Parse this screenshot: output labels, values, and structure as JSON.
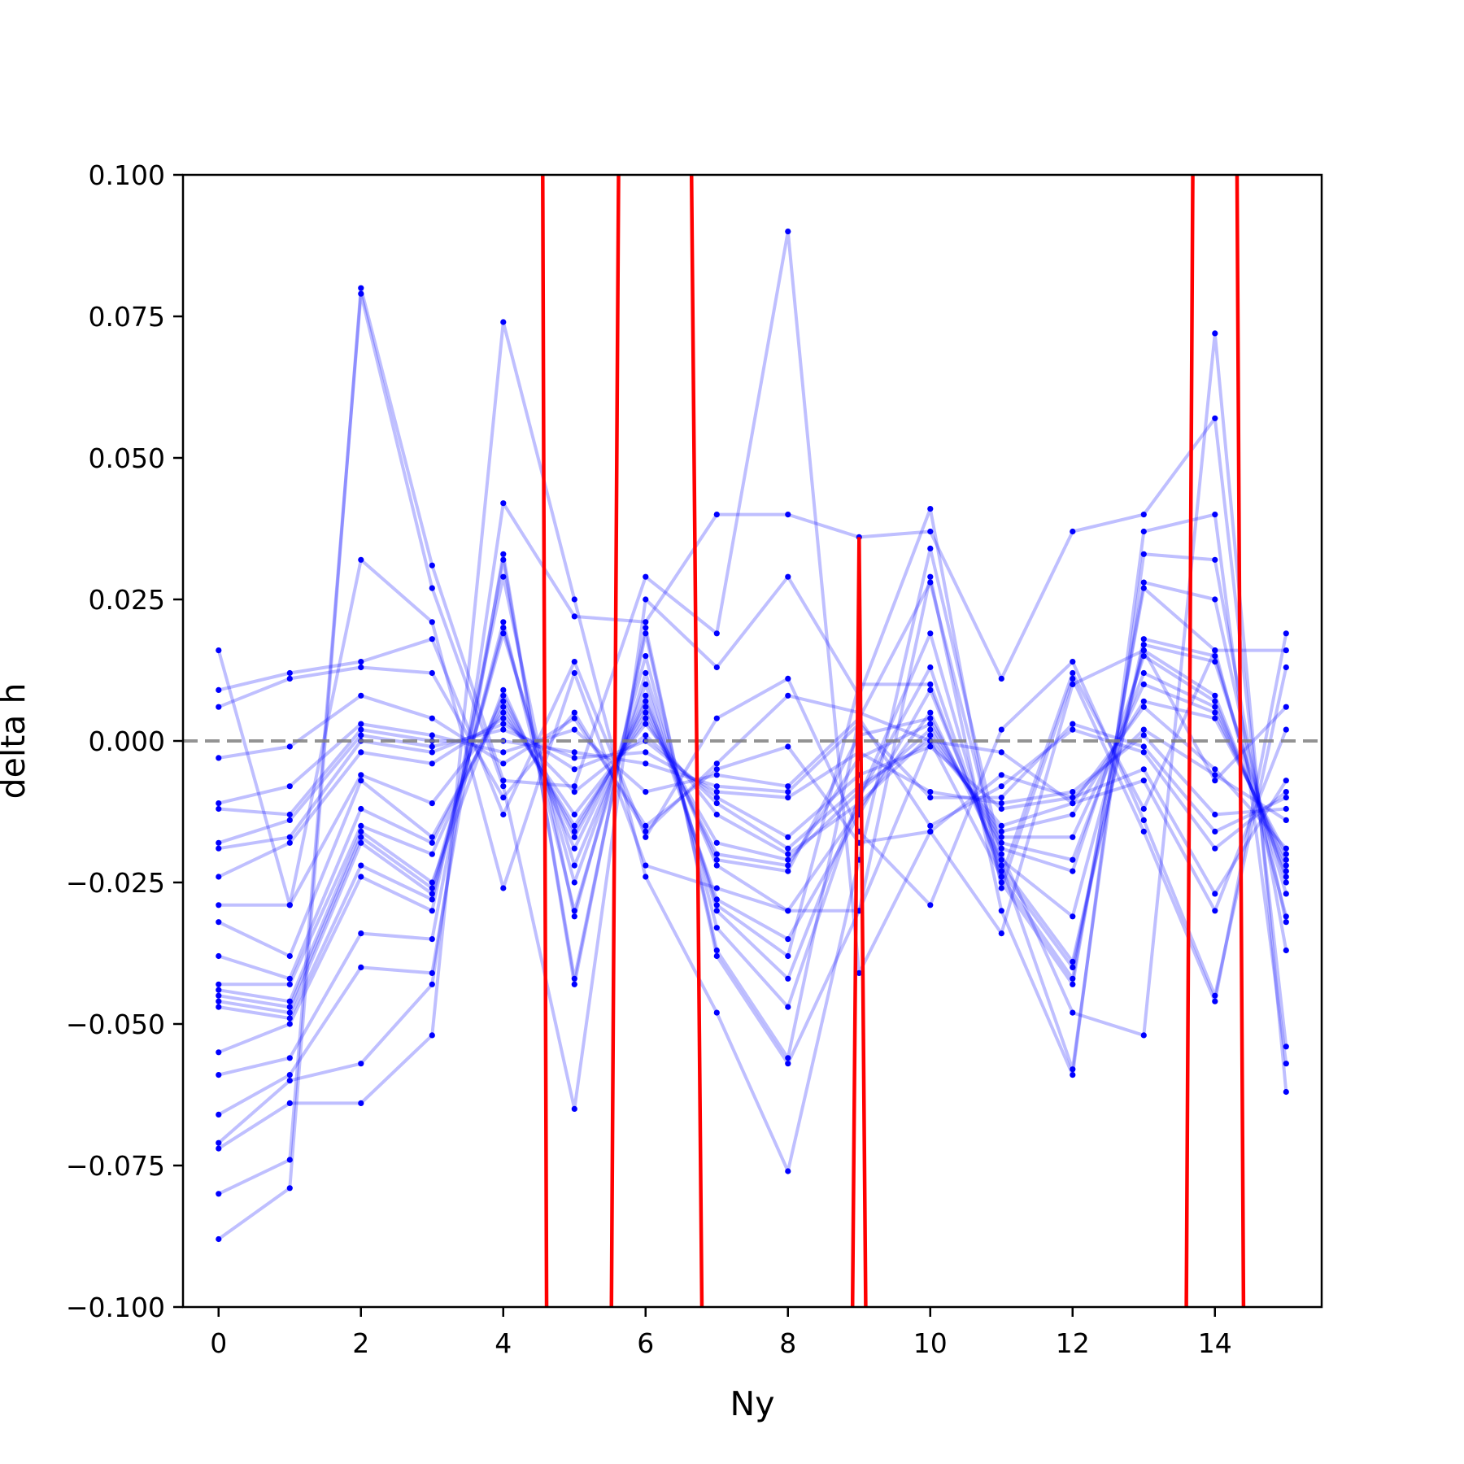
{
  "chart_data": {
    "type": "line",
    "title": "",
    "xlabel": "Ny",
    "ylabel": "delta h",
    "xlim": [
      -0.5,
      15.5
    ],
    "ylim": [
      -0.1,
      0.1
    ],
    "grid": false,
    "legend": "none",
    "x_ticks": [
      "0",
      "2",
      "4",
      "6",
      "8",
      "10",
      "12",
      "14"
    ],
    "y_ticks": [
      "0.100",
      "0.075",
      "0.050",
      "0.025",
      "0.000",
      "−0.025",
      "−0.050",
      "−0.075",
      "−0.100"
    ],
    "reference_line": {
      "y": 0.0,
      "style": "dashed",
      "color": "#808080"
    },
    "colors": {
      "series": "#0000ff",
      "highlight": "#ff0000",
      "reference": "#808080",
      "axes": "#000000"
    },
    "x": [
      0,
      1,
      2,
      3,
      4,
      5,
      6,
      7,
      8,
      9,
      10,
      11,
      12,
      13,
      14,
      15
    ],
    "series": [
      {
        "values": [
          -0.088,
          -0.079,
          0.08,
          0.031,
          -0.007,
          -0.008,
          0.029,
          0.019,
          0.09,
          -0.041,
          -0.016,
          -0.034,
          0.01,
          0.016,
          -0.007,
          0.006
        ]
      },
      {
        "values": [
          -0.08,
          -0.074,
          0.079,
          0.027,
          -0.008,
          -0.065,
          0.025,
          0.013,
          0.029,
          0.008,
          0.041,
          -0.026,
          0.011,
          -0.016,
          -0.046,
          0.019
        ]
      },
      {
        "values": [
          -0.072,
          -0.064,
          -0.064,
          -0.052,
          0.074,
          0.025,
          -0.024,
          -0.048,
          -0.076,
          -0.021,
          0.034,
          -0.02,
          -0.048,
          -0.052,
          0.072,
          -0.062
        ]
      },
      {
        "values": [
          -0.071,
          -0.06,
          -0.057,
          -0.043,
          0.042,
          0.022,
          0.021,
          0.04,
          0.04,
          0.036,
          0.037,
          0.011,
          0.037,
          0.04,
          0.057,
          -0.054
        ]
      },
      {
        "values": [
          -0.066,
          -0.059,
          -0.04,
          -0.041,
          0.033,
          -0.043,
          0.02,
          -0.038,
          -0.057,
          -0.03,
          0.029,
          -0.03,
          -0.059,
          0.037,
          0.04,
          -0.057
        ]
      },
      {
        "values": [
          -0.059,
          -0.056,
          -0.034,
          -0.035,
          0.032,
          -0.042,
          0.019,
          -0.037,
          -0.056,
          0.004,
          0.028,
          -0.022,
          -0.058,
          0.033,
          0.032,
          -0.037
        ]
      },
      {
        "values": [
          -0.055,
          -0.05,
          -0.024,
          -0.03,
          0.029,
          -0.031,
          0.015,
          -0.033,
          -0.047,
          -0.01,
          0.019,
          -0.025,
          -0.043,
          0.028,
          0.025,
          -0.032
        ]
      },
      {
        "values": [
          -0.047,
          -0.049,
          -0.022,
          -0.028,
          0.021,
          -0.03,
          0.012,
          -0.03,
          -0.042,
          -0.01,
          0.013,
          -0.024,
          -0.042,
          0.027,
          0.016,
          -0.031
        ]
      },
      {
        "values": [
          -0.046,
          -0.048,
          -0.018,
          -0.027,
          0.02,
          -0.025,
          0.01,
          -0.029,
          -0.038,
          0.01,
          0.01,
          -0.023,
          -0.04,
          0.018,
          0.015,
          -0.027
        ]
      },
      {
        "values": [
          -0.045,
          -0.047,
          -0.017,
          -0.026,
          0.019,
          -0.022,
          0.008,
          -0.028,
          -0.035,
          -0.013,
          0.009,
          -0.022,
          -0.039,
          0.017,
          0.014,
          -0.025
        ]
      },
      {
        "values": [
          -0.044,
          -0.046,
          -0.016,
          -0.025,
          0.009,
          -0.019,
          0.007,
          -0.022,
          -0.03,
          -0.012,
          0.005,
          -0.021,
          -0.031,
          0.016,
          0.008,
          -0.024
        ]
      },
      {
        "values": [
          -0.043,
          -0.043,
          -0.015,
          -0.02,
          0.008,
          -0.017,
          0.006,
          -0.021,
          -0.023,
          0.001,
          0.004,
          -0.019,
          -0.023,
          0.015,
          0.007,
          -0.023
        ]
      },
      {
        "values": [
          -0.038,
          -0.042,
          -0.012,
          -0.018,
          0.007,
          -0.016,
          0.005,
          -0.02,
          -0.022,
          -0.003,
          0.003,
          -0.018,
          -0.021,
          0.012,
          0.006,
          -0.022
        ]
      },
      {
        "values": [
          -0.032,
          -0.038,
          -0.007,
          -0.017,
          0.006,
          -0.015,
          0.004,
          -0.018,
          -0.021,
          -0.009,
          0.002,
          -0.017,
          -0.017,
          0.01,
          0.005,
          -0.021
        ]
      },
      {
        "values": [
          -0.029,
          -0.029,
          -0.006,
          -0.011,
          0.005,
          -0.013,
          0.003,
          -0.013,
          -0.02,
          -0.011,
          0.001,
          -0.016,
          -0.013,
          0.007,
          0.004,
          -0.02
        ]
      },
      {
        "values": [
          -0.024,
          -0.018,
          -0.002,
          -0.004,
          0.004,
          -0.009,
          0.001,
          -0.011,
          -0.019,
          -0.008,
          0.0,
          -0.015,
          -0.011,
          0.006,
          -0.005,
          -0.019
        ]
      },
      {
        "values": [
          -0.019,
          -0.017,
          0.0,
          -0.002,
          0.003,
          -0.005,
          0.0,
          -0.01,
          -0.017,
          -0.006,
          -0.001,
          -0.012,
          -0.01,
          0.002,
          -0.006,
          -0.014
        ]
      },
      {
        "values": [
          -0.018,
          -0.014,
          0.001,
          -0.001,
          0.002,
          -0.003,
          -0.002,
          -0.009,
          -0.01,
          -0.002,
          -0.009,
          -0.011,
          -0.009,
          0.001,
          -0.013,
          -0.012
        ]
      },
      {
        "values": [
          -0.012,
          -0.013,
          0.002,
          0.0,
          0.0,
          -0.002,
          -0.004,
          -0.008,
          -0.009,
          0.003,
          -0.01,
          -0.01,
          0.003,
          -0.001,
          -0.016,
          -0.01
        ]
      },
      {
        "values": [
          -0.011,
          -0.008,
          0.003,
          0.001,
          -0.002,
          0.002,
          -0.009,
          -0.006,
          -0.008,
          0.004,
          -0.015,
          -0.008,
          0.002,
          -0.002,
          -0.019,
          -0.009
        ]
      },
      {
        "values": [
          -0.003,
          -0.001,
          0.008,
          0.004,
          -0.004,
          0.004,
          -0.015,
          -0.005,
          -0.001,
          -0.018,
          -0.016,
          -0.006,
          -0.01,
          -0.005,
          -0.027,
          -0.007
        ]
      },
      {
        "values": [
          0.006,
          0.011,
          0.013,
          0.012,
          -0.01,
          0.005,
          -0.016,
          -0.004,
          0.008,
          0.005,
          0.0,
          -0.002,
          -0.011,
          -0.007,
          -0.03,
          0.002
        ]
      },
      {
        "values": [
          0.009,
          0.012,
          0.014,
          0.018,
          -0.013,
          0.014,
          -0.017,
          0.004,
          0.011,
          -0.016,
          -0.029,
          0.002,
          0.014,
          -0.014,
          -0.045,
          0.013
        ]
      },
      {
        "values": [
          0.016,
          -0.029,
          0.032,
          0.021,
          -0.026,
          0.012,
          -0.022,
          -0.026,
          -0.03,
          -0.03,
          0.0,
          -0.024,
          0.012,
          -0.012,
          0.016,
          0.016
        ]
      }
    ],
    "highlight_series": {
      "x": [
        4.5,
        4.62,
        5.5,
        5.72,
        6.5,
        6.82,
        8.88,
        9.0,
        9.12,
        13.58,
        13.78,
        14.22,
        14.42
      ],
      "values": [
        0.3,
        -0.14,
        -0.14,
        0.3,
        0.3,
        -0.14,
        -0.14,
        0.036,
        -0.14,
        -0.14,
        0.3,
        0.3,
        -0.14
      ]
    }
  }
}
